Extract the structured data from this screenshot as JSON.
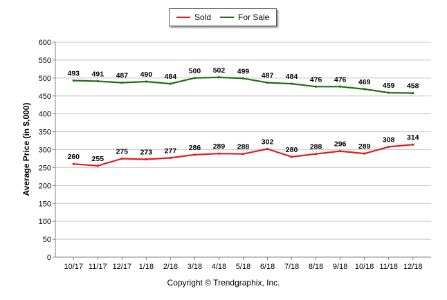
{
  "legend": {
    "sold_label": "Sold",
    "forsale_label": "For Sale"
  },
  "copyright": "Copyright © Trendgraphix, Inc.",
  "chart_data": {
    "type": "line",
    "categories": [
      "10/17",
      "11/17",
      "12/17",
      "1/18",
      "2/18",
      "3/18",
      "4/18",
      "5/18",
      "6/18",
      "7/18",
      "8/18",
      "9/18",
      "10/18",
      "11/18",
      "12/18"
    ],
    "series": [
      {
        "name": "Sold",
        "color": "#e31a1c",
        "values": [
          260,
          255,
          275,
          273,
          277,
          286,
          289,
          288,
          302,
          280,
          288,
          296,
          289,
          308,
          314
        ]
      },
      {
        "name": "For Sale",
        "color": "#1f6e12",
        "values": [
          493,
          491,
          487,
          490,
          484,
          500,
          502,
          499,
          487,
          484,
          476,
          476,
          469,
          459,
          458
        ]
      }
    ],
    "ylabel": "Average Price (in $,000)",
    "ylim": [
      0,
      600
    ],
    "yticks": [
      0,
      50,
      100,
      150,
      200,
      250,
      300,
      350,
      400,
      450,
      500,
      550,
      600
    ],
    "grid": true,
    "legend_position": "top-center"
  }
}
